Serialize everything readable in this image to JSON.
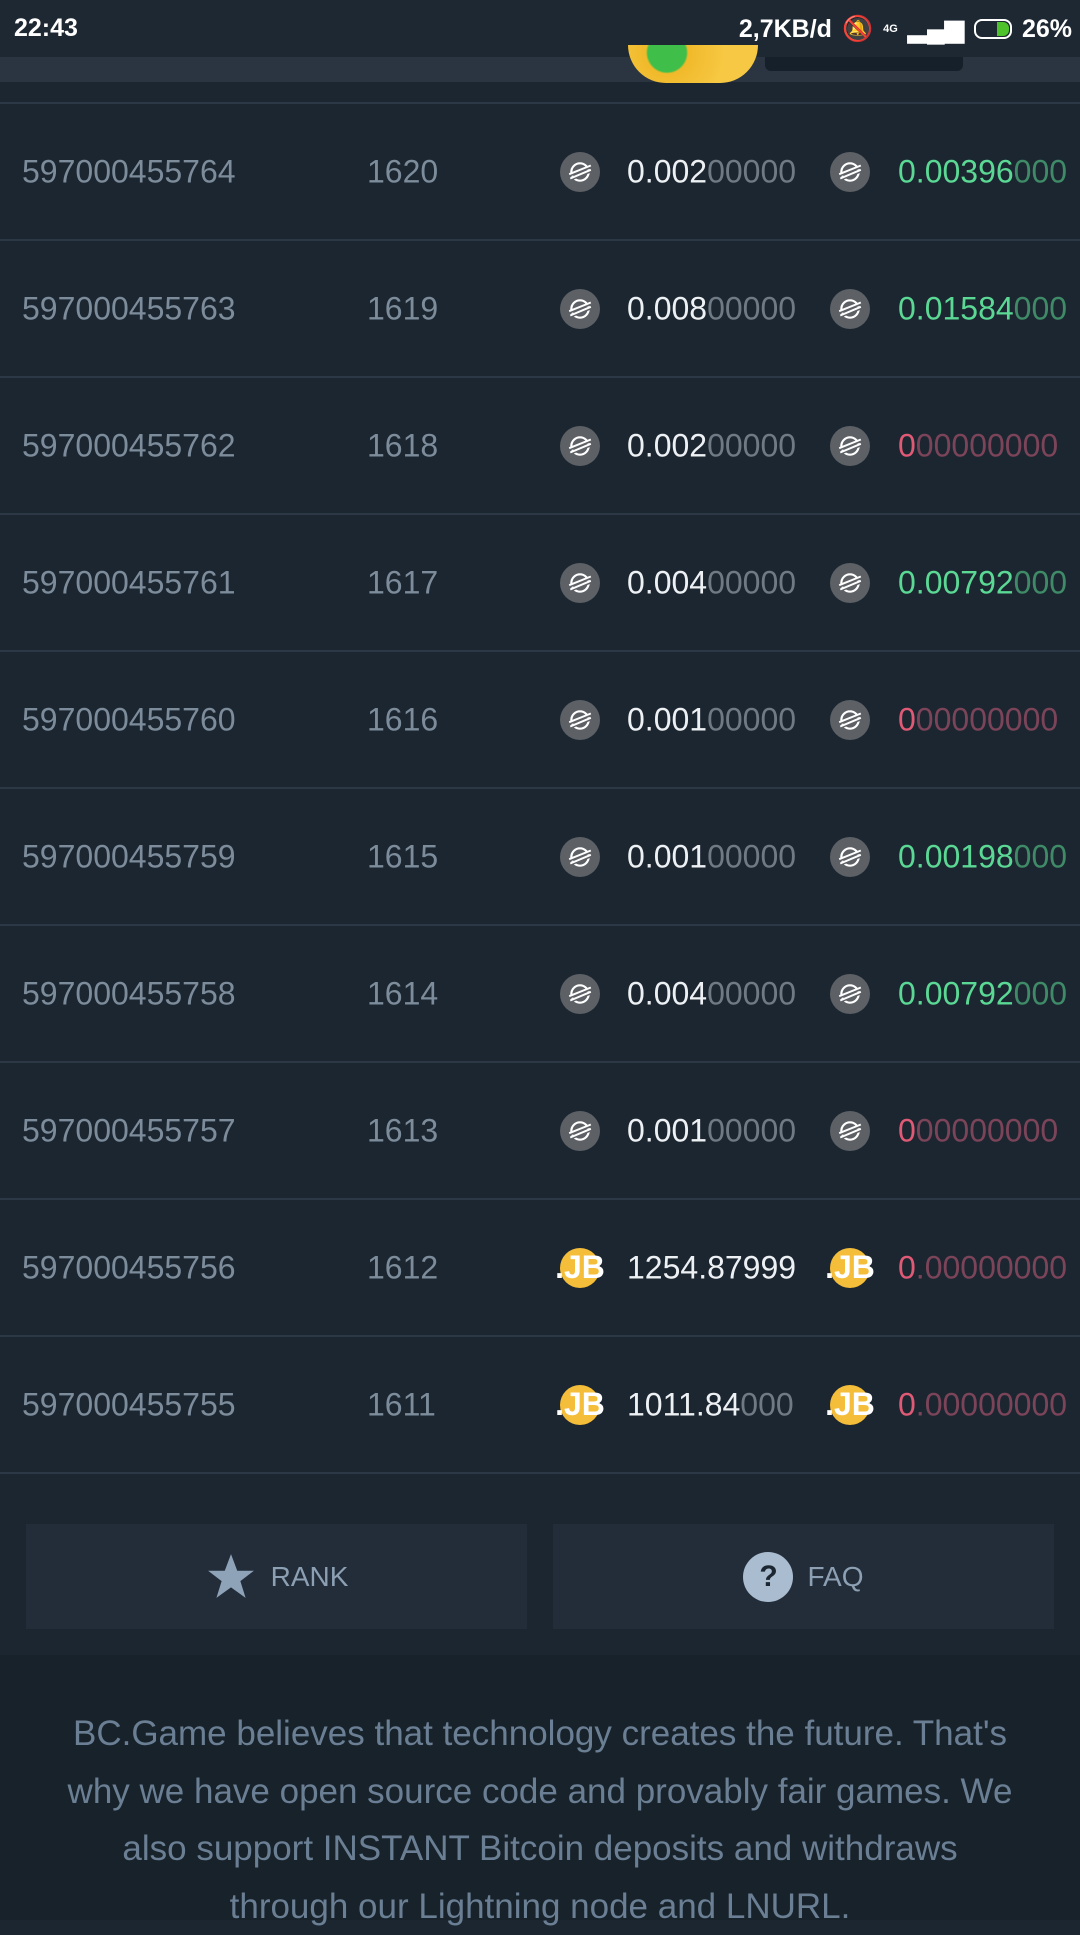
{
  "status_bar": {
    "time": "22:43",
    "data_rate": "2,7KB/d",
    "network": "4G",
    "battery": "26%"
  },
  "rows": [
    {
      "id": "597000455764",
      "num": "1620",
      "currency": "xlm",
      "amount": [
        "0.002",
        "00000"
      ],
      "payout": [
        "0.00396",
        "000"
      ],
      "result": "win"
    },
    {
      "id": "597000455763",
      "num": "1619",
      "currency": "xlm",
      "amount": [
        "0.008",
        "00000"
      ],
      "payout": [
        "0.01584",
        "000"
      ],
      "result": "win"
    },
    {
      "id": "597000455762",
      "num": "1618",
      "currency": "xlm",
      "amount": [
        "0.002",
        "00000"
      ],
      "payout": [
        "0",
        "00000000"
      ],
      "result": "lose"
    },
    {
      "id": "597000455761",
      "num": "1617",
      "currency": "xlm",
      "amount": [
        "0.004",
        "00000"
      ],
      "payout": [
        "0.00792",
        "000"
      ],
      "result": "win"
    },
    {
      "id": "597000455760",
      "num": "1616",
      "currency": "xlm",
      "amount": [
        "0.001",
        "00000"
      ],
      "payout": [
        "0",
        "00000000"
      ],
      "result": "lose"
    },
    {
      "id": "597000455759",
      "num": "1615",
      "currency": "xlm",
      "amount": [
        "0.001",
        "00000"
      ],
      "payout": [
        "0.00198",
        "000"
      ],
      "result": "win"
    },
    {
      "id": "597000455758",
      "num": "1614",
      "currency": "xlm",
      "amount": [
        "0.004",
        "00000"
      ],
      "payout": [
        "0.00792",
        "000"
      ],
      "result": "win"
    },
    {
      "id": "597000455757",
      "num": "1613",
      "currency": "xlm",
      "amount": [
        "0.001",
        "00000"
      ],
      "payout": [
        "0",
        "00000000"
      ],
      "result": "lose"
    },
    {
      "id": "597000455756",
      "num": "1612",
      "currency": "jb",
      "amount": [
        "1254.87999",
        ""
      ],
      "payout": [
        "0",
        ".00000000"
      ],
      "result": "lose"
    },
    {
      "id": "597000455755",
      "num": "1611",
      "currency": "jb",
      "amount": [
        "1011.84",
        "000"
      ],
      "payout": [
        "0",
        ".00000000"
      ],
      "result": "lose"
    }
  ],
  "icons": {
    "xlm": "stellar-icon",
    "jb": "jb-coin-icon",
    "jb_label": ".JB"
  },
  "buttons": {
    "rank": "RANK",
    "faq": "FAQ"
  },
  "footer": {
    "text": "BC.Game believes that technology creates the future. That's why we have open source code and provably fair games. We also support INSTANT Bitcoin deposits and withdraws through our Lightning node and LNURL."
  },
  "colors": {
    "win": "#5ad894",
    "lose": "#e05a76",
    "jb": "#f4bd3a"
  }
}
